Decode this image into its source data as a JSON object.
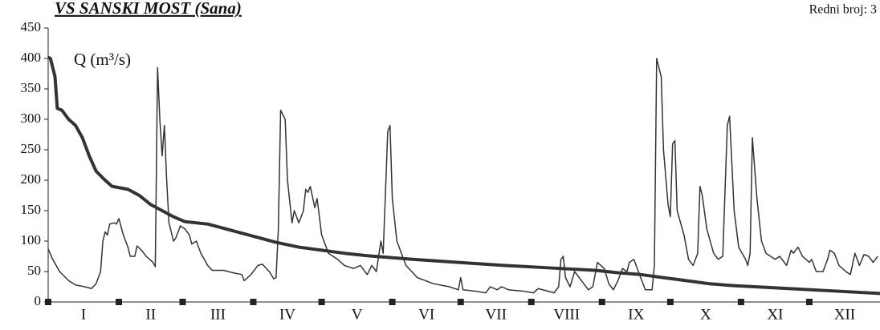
{
  "chart_data": {
    "type": "line",
    "title": "VS SANSKI MOST (Sana)",
    "subtitle": "Redni broj: 3",
    "y_label": "Q (m³/s)",
    "ylim": [
      0,
      450
    ],
    "yticks": [
      0,
      50,
      100,
      150,
      200,
      250,
      300,
      350,
      400,
      450
    ],
    "xlim": [
      0,
      365
    ],
    "xticks": [
      0,
      31,
      59,
      90,
      120,
      151,
      181,
      212,
      243,
      273,
      304,
      334
    ],
    "categories": [
      "I",
      "II",
      "III",
      "IV",
      "V",
      "VI",
      "VII",
      "VIII",
      "IX",
      "X",
      "XI",
      "XII"
    ],
    "series": [
      {
        "color": "#333333",
        "width": 1.5,
        "x": [
          0,
          2,
          5,
          9,
          12,
          16,
          19,
          21,
          23,
          24,
          25,
          26,
          27,
          29,
          30,
          31,
          33,
          35,
          36,
          38,
          39,
          41,
          43,
          46,
          47,
          48,
          49,
          50,
          51,
          52,
          53,
          55,
          56,
          58,
          60,
          62,
          63,
          65,
          67,
          70,
          72,
          77,
          81,
          85,
          86,
          89,
          92,
          94,
          97,
          99,
          100,
          101,
          102,
          104,
          105,
          107,
          108,
          110,
          112,
          113,
          114,
          115,
          117,
          118,
          120,
          123,
          127,
          130,
          134,
          137,
          140,
          142,
          144,
          146,
          147,
          149,
          150,
          151,
          153,
          157,
          162,
          169,
          176,
          180,
          181,
          182,
          187,
          192,
          194,
          197,
          199,
          202,
          208,
          213,
          215,
          222,
          224,
          225,
          226,
          227,
          229,
          231,
          233,
          237,
          239,
          241,
          244,
          246,
          248,
          250,
          252,
          254,
          255,
          257,
          259,
          261,
          262,
          265,
          266,
          267,
          269,
          270,
          272,
          273,
          274,
          275,
          276,
          279,
          281,
          283,
          285,
          286,
          287,
          289,
          292,
          294,
          296,
          298,
          299,
          301,
          303,
          306,
          307,
          308,
          309,
          311,
          313,
          315,
          319,
          321,
          324,
          326,
          327,
          329,
          331,
          334,
          335,
          337,
          340,
          342,
          343,
          345,
          347,
          350,
          352,
          354,
          355,
          356,
          358,
          360,
          362,
          364
        ],
        "values": [
          87,
          70,
          50,
          35,
          28,
          25,
          22,
          30,
          50,
          100,
          115,
          110,
          128,
          130,
          128,
          137,
          110,
          90,
          75,
          75,
          92,
          85,
          75,
          65,
          58,
          385,
          300,
          240,
          290,
          200,
          130,
          100,
          105,
          125,
          120,
          110,
          95,
          100,
          80,
          60,
          52,
          52,
          48,
          45,
          35,
          45,
          60,
          62,
          50,
          38,
          40,
          120,
          315,
          300,
          200,
          130,
          150,
          130,
          150,
          185,
          180,
          190,
          155,
          170,
          110,
          80,
          70,
          60,
          55,
          60,
          45,
          60,
          50,
          100,
          80,
          280,
          290,
          170,
          100,
          60,
          40,
          30,
          25,
          20,
          40,
          20,
          18,
          15,
          25,
          20,
          25,
          20,
          18,
          15,
          22,
          15,
          25,
          70,
          75,
          40,
          25,
          50,
          40,
          20,
          25,
          65,
          55,
          30,
          20,
          35,
          55,
          50,
          65,
          70,
          50,
          30,
          20,
          20,
          60,
          400,
          370,
          250,
          160,
          140,
          260,
          265,
          150,
          110,
          70,
          60,
          80,
          190,
          175,
          120,
          80,
          70,
          75,
          290,
          305,
          150,
          90,
          70,
          60,
          80,
          270,
          170,
          100,
          80,
          70,
          75,
          60,
          85,
          80,
          90,
          75,
          65,
          70,
          50,
          50,
          70,
          85,
          80,
          60,
          50,
          45,
          80,
          70,
          60,
          78,
          75,
          65,
          75
        ]
      },
      {
        "color": "#333333",
        "width": 4,
        "x": [
          0,
          1,
          3,
          4,
          6,
          9,
          12,
          15,
          18,
          21,
          25,
          28,
          35,
          40,
          45,
          50,
          55,
          60,
          70,
          80,
          90,
          100,
          110,
          120,
          130,
          140,
          160,
          180,
          200,
          220,
          240,
          250,
          260,
          270,
          280,
          290,
          300,
          320,
          340,
          365
        ],
        "values": [
          402,
          400,
          370,
          318,
          315,
          300,
          290,
          270,
          240,
          215,
          200,
          190,
          185,
          175,
          160,
          150,
          140,
          132,
          128,
          118,
          108,
          98,
          90,
          85,
          80,
          76,
          70,
          65,
          60,
          56,
          52,
          48,
          45,
          40,
          35,
          30,
          27,
          23,
          19,
          14
        ]
      }
    ]
  }
}
